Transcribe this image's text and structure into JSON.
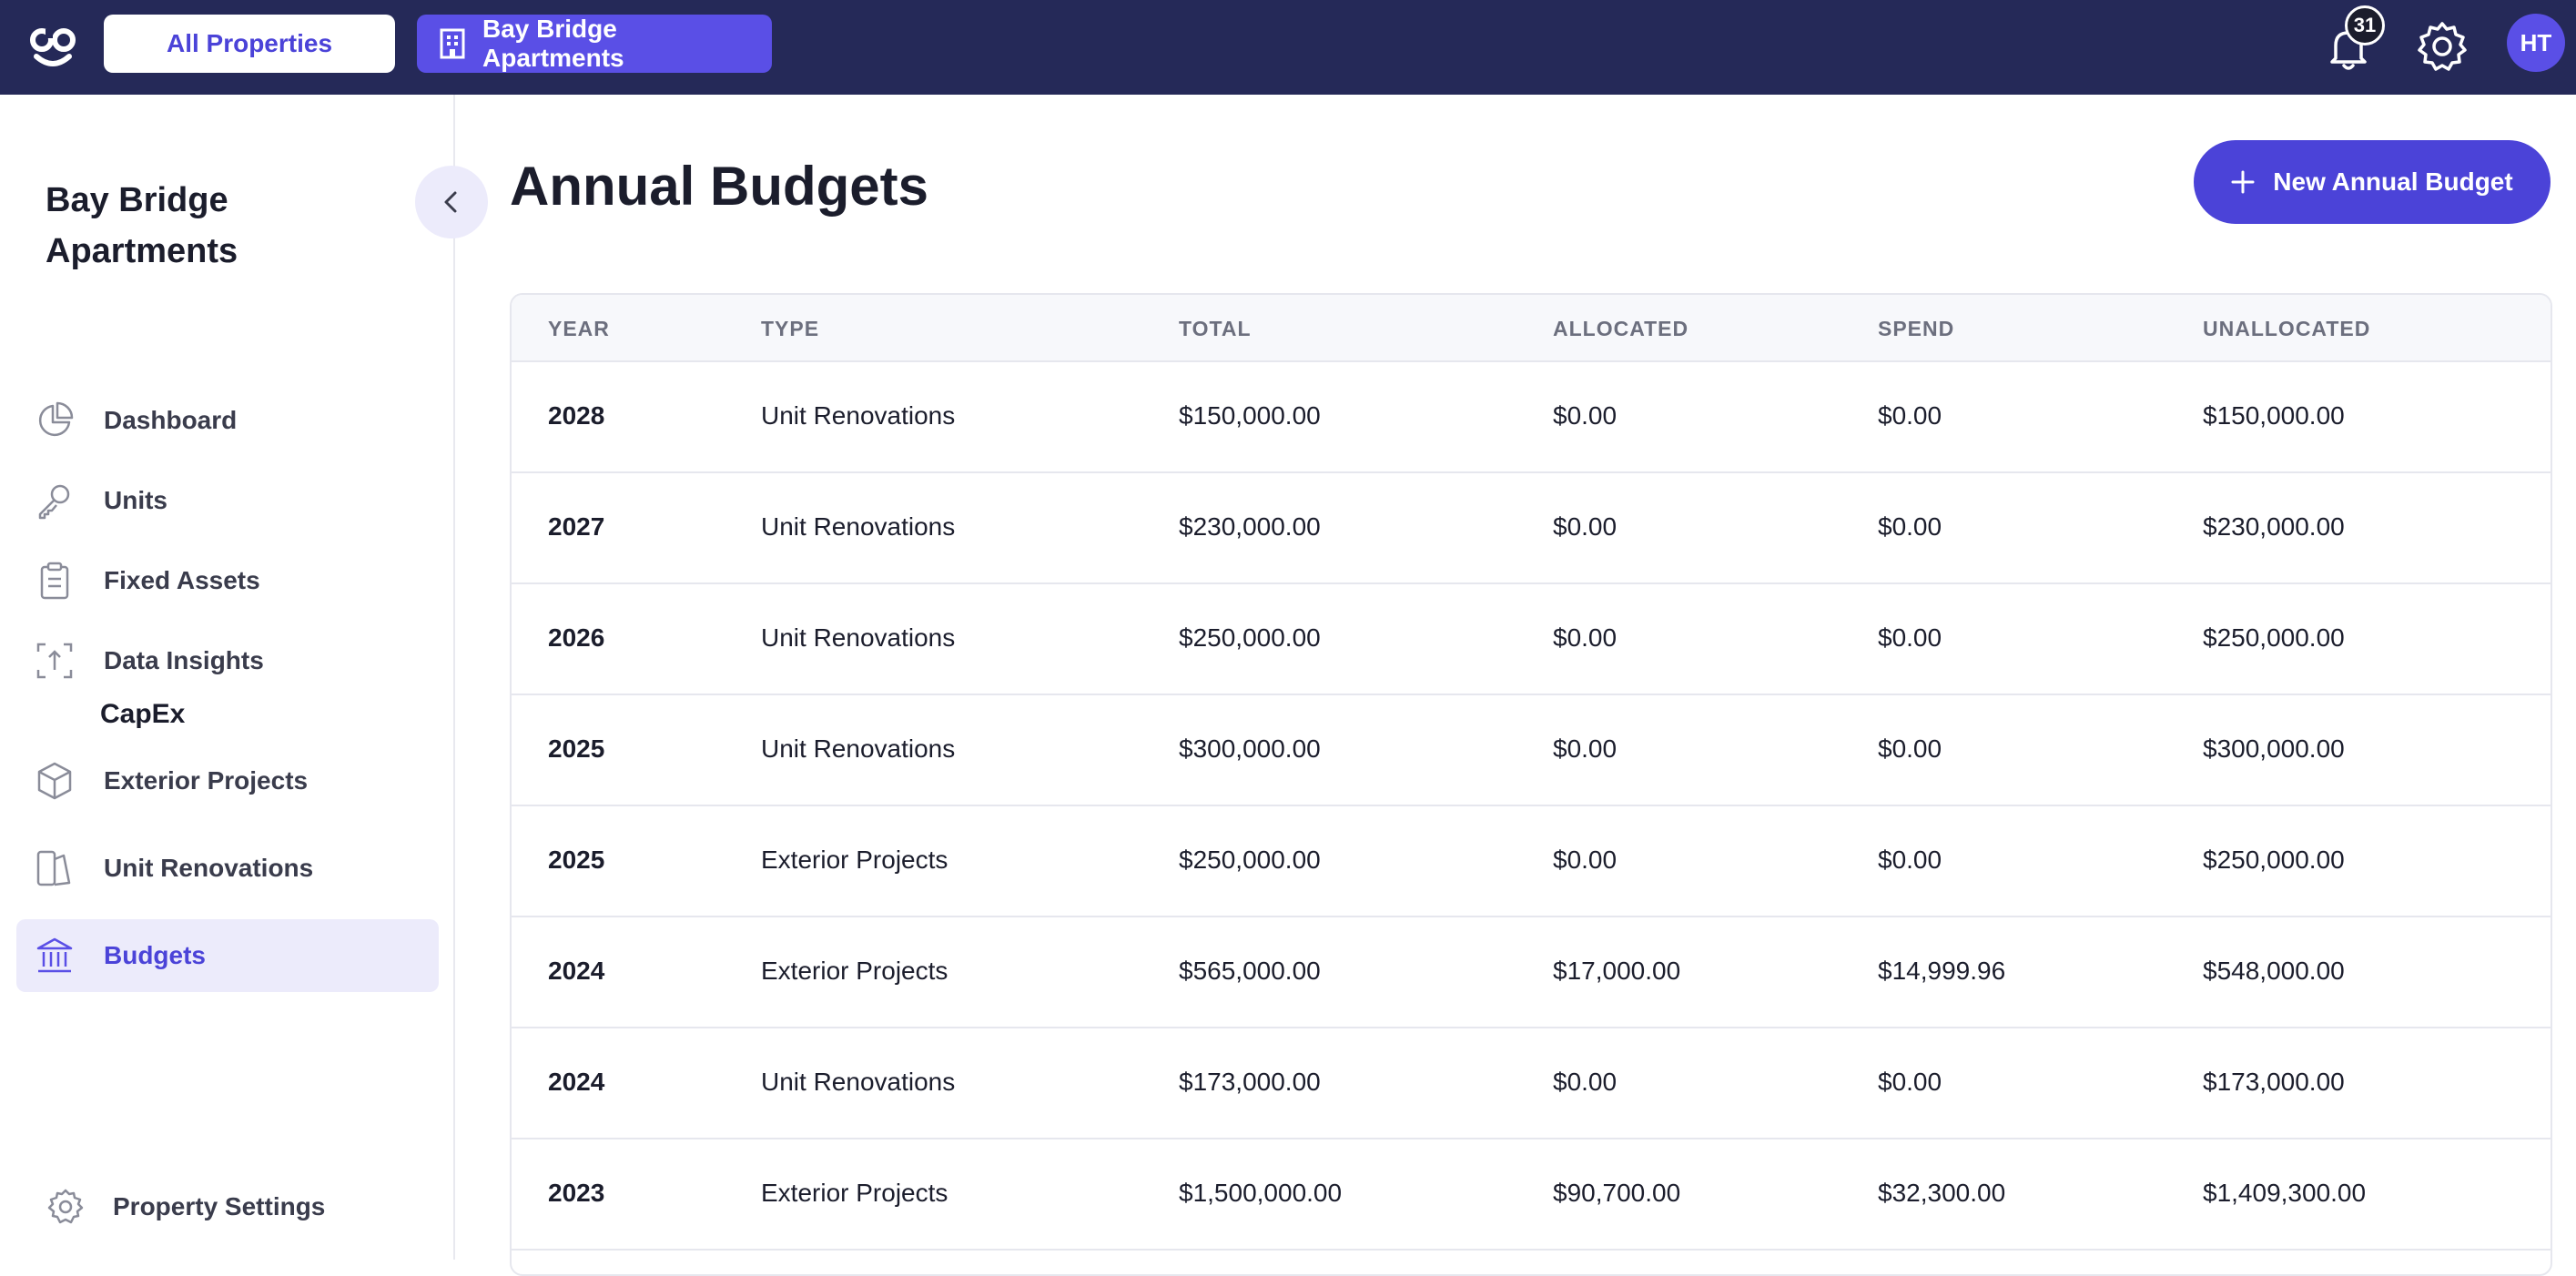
{
  "header": {
    "logo_text": "co",
    "all_properties_label": "All Properties",
    "property_label": "Bay Bridge Apartments",
    "notifications_count": "31",
    "avatar_initials": "HT"
  },
  "sidebar": {
    "property_name": "Bay Bridge Apartments",
    "items": [
      {
        "label": "Dashboard",
        "icon": "pie-chart-icon"
      },
      {
        "label": "Units",
        "icon": "key-icon"
      },
      {
        "label": "Fixed Assets",
        "icon": "clipboard-icon"
      },
      {
        "label": "Data Insights",
        "icon": "insights-icon"
      }
    ],
    "capex_title": "CapEx",
    "capex_items": [
      {
        "label": "Exterior Projects",
        "icon": "cube-icon"
      },
      {
        "label": "Unit Renovations",
        "icon": "renovation-icon"
      },
      {
        "label": "Budgets",
        "icon": "bank-icon",
        "active": true
      }
    ],
    "settings_label": "Property Settings"
  },
  "main": {
    "title": "Annual Budgets",
    "new_button_label": "New Annual Budget",
    "columns": [
      "YEAR",
      "TYPE",
      "TOTAL",
      "ALLOCATED",
      "SPEND",
      "UNALLOCATED"
    ],
    "rows": [
      [
        "2028",
        "Unit Renovations",
        "$150,000.00",
        "$0.00",
        "$0.00",
        "$150,000.00"
      ],
      [
        "2027",
        "Unit Renovations",
        "$230,000.00",
        "$0.00",
        "$0.00",
        "$230,000.00"
      ],
      [
        "2026",
        "Unit Renovations",
        "$250,000.00",
        "$0.00",
        "$0.00",
        "$250,000.00"
      ],
      [
        "2025",
        "Unit Renovations",
        "$300,000.00",
        "$0.00",
        "$0.00",
        "$300,000.00"
      ],
      [
        "2025",
        "Exterior Projects",
        "$250,000.00",
        "$0.00",
        "$0.00",
        "$250,000.00"
      ],
      [
        "2024",
        "Exterior Projects",
        "$565,000.00",
        "$17,000.00",
        "$14,999.96",
        "$548,000.00"
      ],
      [
        "2024",
        "Unit Renovations",
        "$173,000.00",
        "$0.00",
        "$0.00",
        "$173,000.00"
      ],
      [
        "2023",
        "Exterior Projects",
        "$1,500,000.00",
        "$90,700.00",
        "$32,300.00",
        "$1,409,300.00"
      ]
    ]
  },
  "colors": {
    "topbar": "#252958",
    "accent": "#4b43d8",
    "accent_light": "#ecebfb"
  }
}
